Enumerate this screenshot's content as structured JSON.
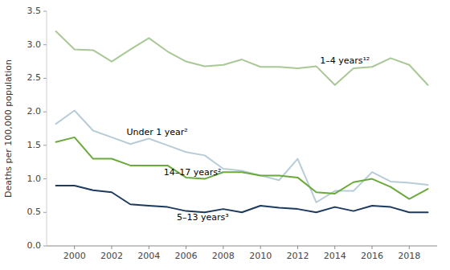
{
  "chart_data": {
    "type": "line",
    "ylabel": "Deaths per 100,000 population",
    "x": [
      1999,
      2000,
      2001,
      2002,
      2003,
      2004,
      2005,
      2006,
      2007,
      2008,
      2009,
      2010,
      2011,
      2012,
      2013,
      2014,
      2015,
      2016,
      2017,
      2018,
      2019
    ],
    "series": [
      {
        "color": "#a8c896",
        "values": [
          3.2,
          2.93,
          2.92,
          2.75,
          2.93,
          3.1,
          2.9,
          2.75,
          2.68,
          2.7,
          2.78,
          2.67,
          2.67,
          2.65,
          2.68,
          2.4,
          2.65,
          2.67,
          2.8,
          2.7,
          2.4
        ]
      },
      {
        "color": "#b8ccd8",
        "values": [
          1.82,
          2.02,
          1.72,
          1.62,
          1.52,
          1.6,
          1.5,
          1.4,
          1.35,
          1.15,
          1.12,
          1.05,
          0.98,
          1.3,
          0.65,
          0.82,
          0.82,
          1.1,
          0.96,
          0.94,
          0.91
        ]
      },
      {
        "color": "#6aaa3c",
        "values": [
          1.55,
          1.62,
          1.3,
          1.3,
          1.2,
          1.2,
          1.2,
          1.02,
          1.0,
          1.1,
          1.1,
          1.05,
          1.05,
          1.02,
          0.8,
          0.78,
          0.95,
          1.0,
          0.88,
          0.7,
          0.85
        ]
      },
      {
        "color": "#1c3a5e",
        "values": [
          0.9,
          0.9,
          0.83,
          0.8,
          0.62,
          0.6,
          0.58,
          0.52,
          0.5,
          0.55,
          0.5,
          0.6,
          0.57,
          0.55,
          0.5,
          0.58,
          0.52,
          0.6,
          0.58,
          0.5,
          0.5
        ]
      }
    ],
    "annotations": [
      {
        "text": "1–4 years¹²",
        "x": 2013.2,
        "y": 2.72
      },
      {
        "text": "Under 1 year²",
        "x": 2002.8,
        "y": 1.65
      },
      {
        "text": "14–17 years²",
        "x": 2004.8,
        "y": 1.06
      },
      {
        "text": "5–13 years³",
        "x": 2005.5,
        "y": 0.38
      }
    ],
    "xlim": [
      1998.5,
      2019.5
    ],
    "xticks": [
      2000,
      2002,
      2004,
      2006,
      2008,
      2010,
      2012,
      2014,
      2016,
      2018
    ],
    "ylim": [
      0.0,
      3.5
    ],
    "yticks": [
      {
        "value": 0.0,
        "label": "0.0"
      },
      0.5,
      {
        "value": 1.0,
        "label": "1.0"
      },
      1.5,
      {
        "value": 2.0,
        "label": "2.0"
      },
      2.5,
      {
        "value": 3.0,
        "label": "3.0"
      },
      3.5
    ],
    "grid": false
  }
}
